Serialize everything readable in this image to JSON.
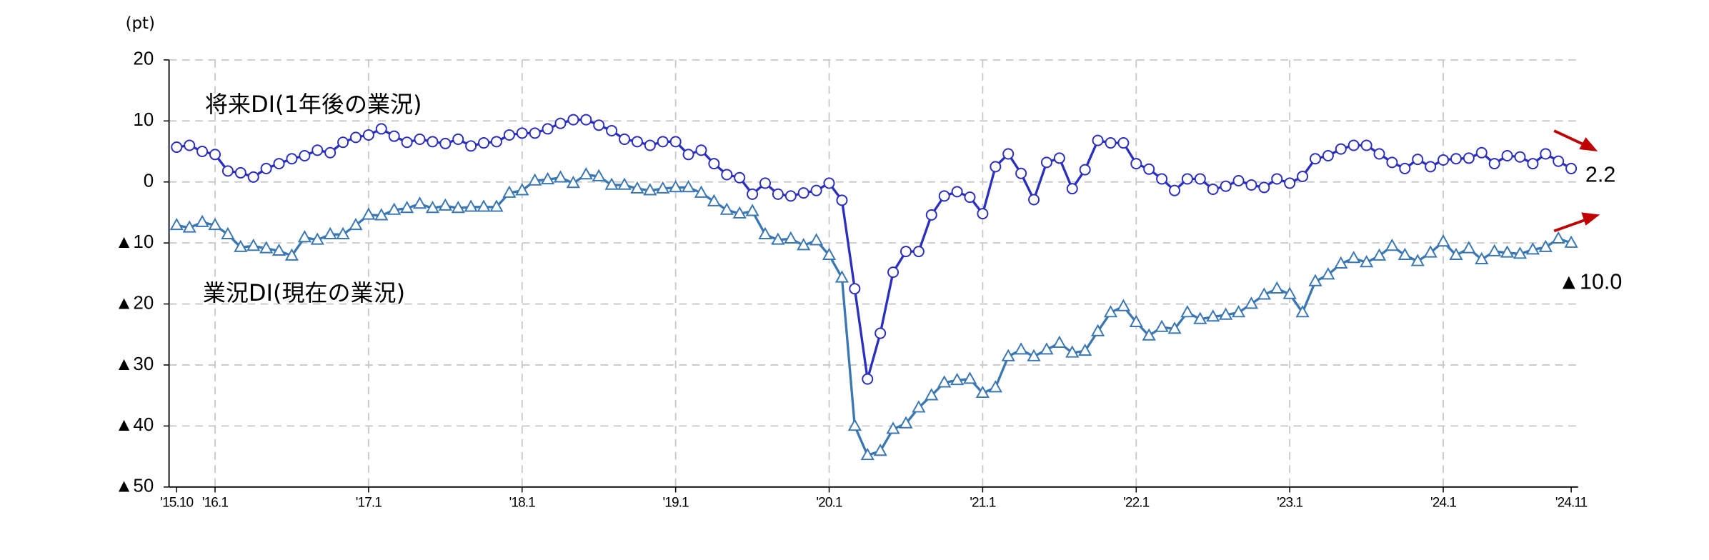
{
  "chart_data": {
    "type": "line",
    "y_unit": "(pt)",
    "categories": [
      "'15.10",
      null,
      null,
      "'16.1",
      null,
      null,
      null,
      null,
      null,
      null,
      null,
      null,
      null,
      null,
      null,
      "'17.1",
      null,
      null,
      null,
      null,
      null,
      null,
      null,
      null,
      null,
      null,
      null,
      "'18.1",
      null,
      null,
      null,
      null,
      null,
      null,
      null,
      null,
      null,
      null,
      null,
      "'19.1",
      null,
      null,
      null,
      null,
      null,
      null,
      null,
      null,
      null,
      null,
      null,
      "'20.1",
      null,
      null,
      null,
      null,
      null,
      null,
      null,
      null,
      null,
      null,
      null,
      "'21.1",
      null,
      null,
      null,
      null,
      null,
      null,
      null,
      null,
      null,
      null,
      null,
      "'22.1",
      null,
      null,
      null,
      null,
      null,
      null,
      null,
      null,
      null,
      null,
      null,
      "'23.1",
      null,
      null,
      null,
      null,
      null,
      null,
      null,
      null,
      null,
      null,
      null,
      "'24.1",
      null,
      null,
      null,
      null,
      null,
      null,
      null,
      null,
      null,
      "'24.11"
    ],
    "series": [
      {
        "name": "将来DI(1年後の業況)",
        "color": "#2b2fbd",
        "marker": "circle",
        "values": [
          5.7,
          6.0,
          5.0,
          4.5,
          1.8,
          1.5,
          0.8,
          2.2,
          3.0,
          3.8,
          4.3,
          5.2,
          4.8,
          6.5,
          7.3,
          7.7,
          8.7,
          7.5,
          6.5,
          7.0,
          6.6,
          6.3,
          7.0,
          5.9,
          6.4,
          6.6,
          7.7,
          8.0,
          8.0,
          8.7,
          9.6,
          10.2,
          10.2,
          9.3,
          8.4,
          7.0,
          6.6,
          6.0,
          6.6,
          6.6,
          4.5,
          5.2,
          3.0,
          1.2,
          0.7,
          -2.0,
          -0.2,
          -2.0,
          -2.3,
          -1.8,
          -1.4,
          -0.2,
          -3.0,
          -17.5,
          -32.3,
          -24.8,
          -14.8,
          -11.4,
          -11.4,
          -5.4,
          -2.3,
          -1.6,
          -2.5,
          -5.2,
          2.5,
          4.6,
          1.4,
          -2.9,
          3.2,
          3.9,
          -1.1,
          2.0,
          6.8,
          6.4,
          6.4,
          3.0,
          2.1,
          0.5,
          -1.4,
          0.5,
          0.5,
          -1.2,
          -0.7,
          0.2,
          -0.5,
          -0.9,
          0.5,
          -0.2,
          0.9,
          3.8,
          4.3,
          5.4,
          6.0,
          6.0,
          4.6,
          3.2,
          2.2,
          3.7,
          2.5,
          3.6,
          3.8,
          3.9,
          4.8,
          3.0,
          4.3,
          4.1,
          3.0,
          4.6,
          3.4,
          2.2
        ],
        "value_labels": [
          null,
          null,
          null,
          null,
          null,
          null,
          null,
          null,
          null,
          null,
          null,
          null,
          null,
          null,
          null,
          null,
          null,
          null,
          null,
          null,
          null,
          null,
          null,
          null,
          null,
          null,
          null,
          null,
          null,
          null,
          null,
          null,
          null,
          null,
          null,
          null,
          null,
          null,
          null,
          null,
          null,
          null,
          null,
          null,
          null,
          null,
          null,
          null,
          null,
          null,
          null,
          null,
          null,
          null,
          null,
          null,
          null,
          null,
          null,
          null,
          null,
          null,
          null,
          null,
          null,
          null,
          null,
          null,
          null,
          null,
          null,
          null,
          null,
          null,
          null,
          null,
          null,
          null,
          null,
          null,
          null,
          null,
          null,
          null,
          null,
          null,
          null,
          null,
          null,
          null,
          null,
          null,
          null,
          null,
          null,
          null,
          null,
          null,
          null,
          null,
          null,
          null,
          null,
          null,
          null,
          null,
          null,
          null,
          null,
          "2.2"
        ]
      },
      {
        "name": "業況DI(現在の業況)",
        "color": "#3a77b3",
        "marker": "triangle",
        "values": [
          -7.1,
          -7.5,
          -6.6,
          -7.1,
          -8.6,
          -10.7,
          -10.5,
          -10.9,
          -11.3,
          -12.1,
          -9.1,
          -9.5,
          -8.6,
          -8.6,
          -7.1,
          -5.4,
          -5.5,
          -4.6,
          -4.3,
          -3.6,
          -4.3,
          -3.9,
          -4.3,
          -4.1,
          -4.1,
          -4.1,
          -1.8,
          -1.4,
          0.2,
          0.4,
          0.7,
          -0.2,
          1.2,
          0.9,
          -0.5,
          -0.5,
          -1.1,
          -1.4,
          -1.1,
          -0.9,
          -0.9,
          -1.8,
          -3.2,
          -4.6,
          -5.2,
          -4.8,
          -8.6,
          -9.5,
          -9.3,
          -10.4,
          -9.6,
          -12.0,
          -15.7,
          -40.0,
          -44.8,
          -44.1,
          -40.5,
          -39.6,
          -37.0,
          -35.0,
          -32.9,
          -32.5,
          -32.3,
          -34.6,
          -33.7,
          -28.6,
          -27.5,
          -28.6,
          -27.5,
          -26.4,
          -28.0,
          -27.7,
          -24.5,
          -21.4,
          -20.4,
          -23.0,
          -25.2,
          -23.8,
          -24.1,
          -21.4,
          -22.5,
          -22.1,
          -21.8,
          -21.4,
          -20.0,
          -18.5,
          -17.5,
          -18.4,
          -21.4,
          -16.3,
          -15.2,
          -13.4,
          -12.5,
          -13.2,
          -12.1,
          -10.5,
          -12.0,
          -13.0,
          -11.6,
          -9.8,
          -12.0,
          -10.9,
          -12.7,
          -11.4,
          -11.6,
          -11.8,
          -11.1,
          -10.7,
          -9.3,
          -10.0
        ],
        "value_labels": [
          null,
          null,
          null,
          null,
          null,
          null,
          null,
          null,
          null,
          null,
          null,
          null,
          null,
          null,
          null,
          null,
          null,
          null,
          null,
          null,
          null,
          null,
          null,
          null,
          null,
          null,
          null,
          null,
          null,
          null,
          null,
          null,
          null,
          null,
          null,
          null,
          null,
          null,
          null,
          null,
          null,
          null,
          null,
          null,
          null,
          null,
          null,
          null,
          null,
          null,
          null,
          null,
          null,
          null,
          null,
          null,
          null,
          null,
          null,
          null,
          null,
          null,
          null,
          null,
          null,
          null,
          null,
          null,
          null,
          null,
          null,
          null,
          null,
          null,
          null,
          null,
          null,
          null,
          null,
          null,
          null,
          null,
          null,
          null,
          null,
          null,
          null,
          null,
          null,
          null,
          null,
          null,
          null,
          null,
          null,
          null,
          null,
          null,
          null,
          null,
          null,
          null,
          null,
          null,
          null,
          null,
          null,
          null,
          null,
          "▲10.0"
        ]
      }
    ],
    "ylim": [
      -50,
      20
    ],
    "yticks": [
      20,
      10,
      0,
      {
        "value": -10,
        "label": "▲10"
      },
      {
        "value": -20,
        "label": "▲20"
      },
      {
        "value": -30,
        "label": "▲30"
      },
      {
        "value": -40,
        "label": "▲40"
      },
      {
        "value": -50,
        "label": "▲50"
      }
    ],
    "grid": true
  }
}
